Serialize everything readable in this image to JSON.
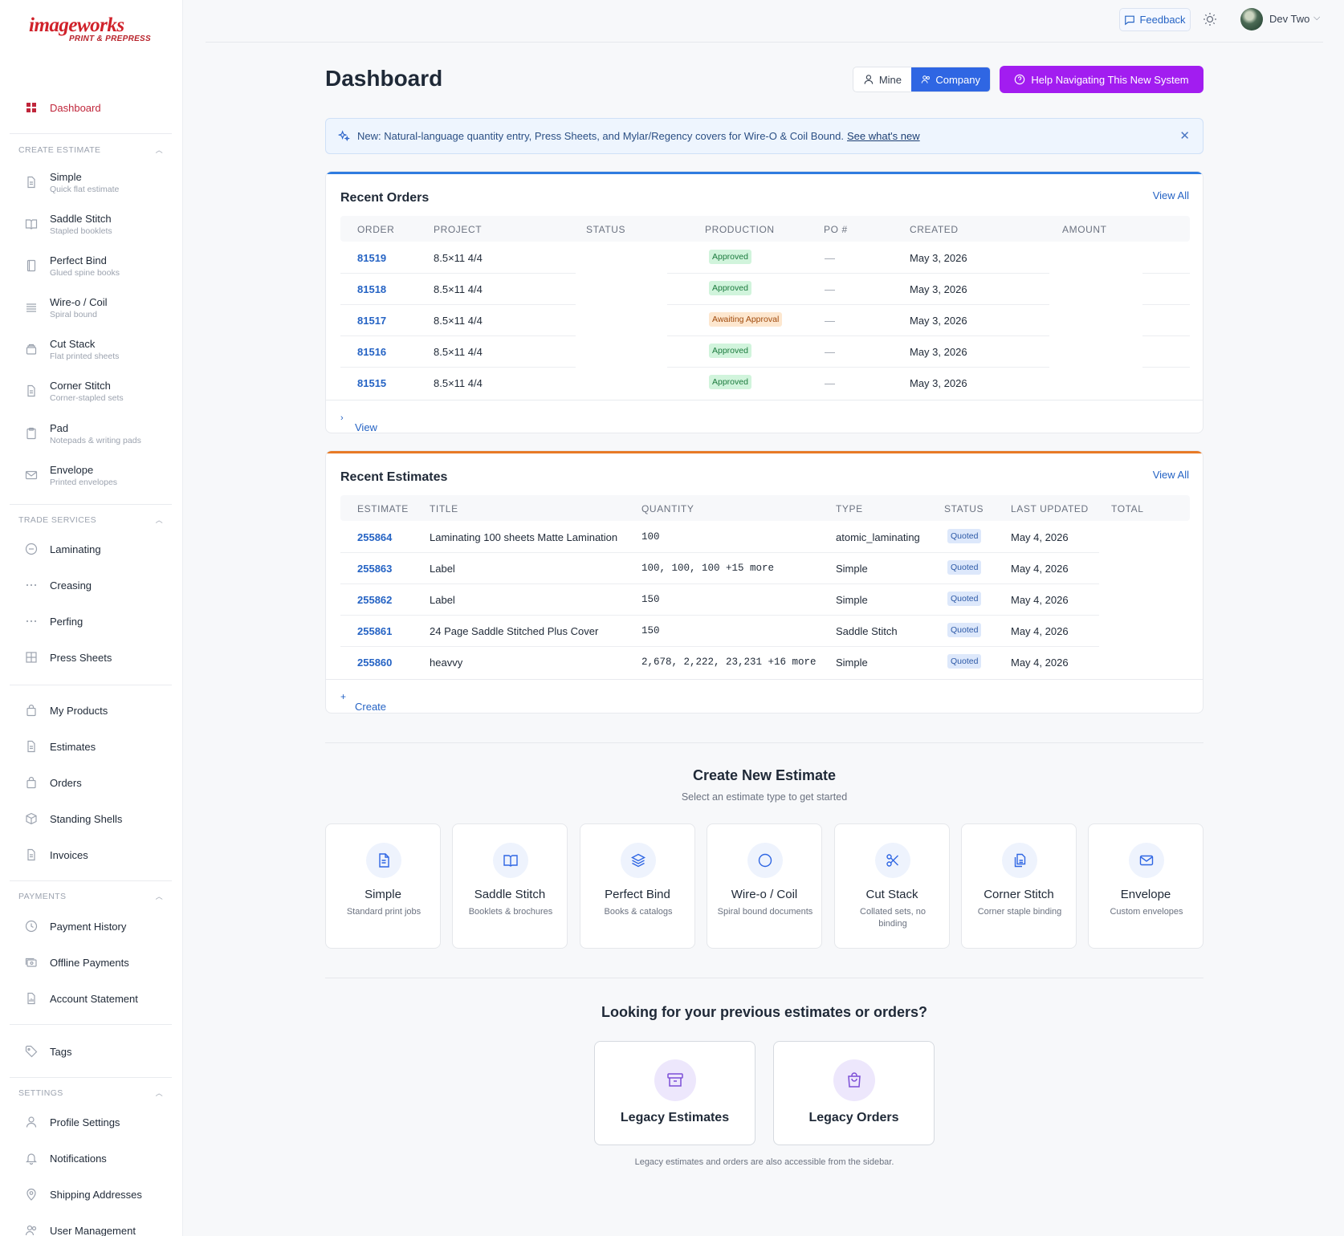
{
  "brand": {
    "line1": "imageworks",
    "line2": "PRINT & PREPRESS"
  },
  "sidebar": {
    "dashboard": "Dashboard",
    "sections": {
      "create_estimate": "CREATE ESTIMATE",
      "trade_services": "TRADE SERVICES",
      "payments": "PAYMENTS",
      "settings": "SETTINGS"
    },
    "create_items": [
      {
        "label": "Simple",
        "sub": "Quick flat estimate"
      },
      {
        "label": "Saddle Stitch",
        "sub": "Stapled booklets"
      },
      {
        "label": "Perfect Bind",
        "sub": "Glued spine books"
      },
      {
        "label": "Wire-o / Coil",
        "sub": "Spiral bound"
      },
      {
        "label": "Cut Stack",
        "sub": "Flat printed sheets"
      },
      {
        "label": "Corner Stitch",
        "sub": "Corner-stapled sets"
      },
      {
        "label": "Pad",
        "sub": "Notepads & writing pads"
      },
      {
        "label": "Envelope",
        "sub": "Printed envelopes"
      }
    ],
    "trade_items": [
      "Laminating",
      "Creasing",
      "Perfing",
      "Press Sheets"
    ],
    "main_items": [
      "My Products",
      "Estimates",
      "Orders",
      "Standing Shells",
      "Invoices"
    ],
    "payment_items": [
      "Payment History",
      "Offline Payments",
      "Account Statement"
    ],
    "tags": "Tags",
    "settings_items": [
      "Profile Settings",
      "Notifications",
      "Shipping Addresses",
      "User Management"
    ]
  },
  "topbar": {
    "feedback": "Feedback",
    "user": "Dev Two"
  },
  "header": {
    "title": "Dashboard",
    "mine": "Mine",
    "company": "Company",
    "help": "Help Navigating This New System"
  },
  "banner": {
    "text": "New: Natural-language quantity entry, Press Sheets, and Mylar/Regency covers for Wire-O & Coil Bound.",
    "link": "See what's new"
  },
  "orders": {
    "title": "Recent Orders",
    "view_all": "View All",
    "columns": [
      "ORDER",
      "PROJECT",
      "STATUS",
      "PRODUCTION",
      "PO #",
      "CREATED",
      "AMOUNT"
    ],
    "rows": [
      {
        "order": "81519",
        "project": "8.5×11 4/4",
        "production": "Approved",
        "po": "—",
        "created": "May 3, 2026"
      },
      {
        "order": "81518",
        "project": "8.5×11 4/4",
        "production": "Approved",
        "po": "—",
        "created": "May 3, 2026"
      },
      {
        "order": "81517",
        "project": "8.5×11 4/4",
        "production": "Awaiting Approval",
        "po": "—",
        "created": "May 3, 2026"
      },
      {
        "order": "81516",
        "project": "8.5×11 4/4",
        "production": "Approved",
        "po": "—",
        "created": "May 3, 2026"
      },
      {
        "order": "81515",
        "project": "8.5×11 4/4",
        "production": "Approved",
        "po": "—",
        "created": "May 3, 2026"
      }
    ],
    "footer": "View all orders"
  },
  "estimates": {
    "title": "Recent Estimates",
    "view_all": "View All",
    "columns": [
      "ESTIMATE",
      "TITLE",
      "QUANTITY",
      "TYPE",
      "STATUS",
      "LAST UPDATED",
      "TOTAL"
    ],
    "rows": [
      {
        "id": "255864",
        "title": "Laminating 100 sheets Matte Lamination",
        "qty": "100",
        "type": "atomic_laminating",
        "status": "Quoted",
        "updated": "May 4, 2026"
      },
      {
        "id": "255863",
        "title": "Label",
        "qty": "100, 100, 100 +15 more",
        "type": "Simple",
        "status": "Quoted",
        "updated": "May 4, 2026"
      },
      {
        "id": "255862",
        "title": "Label",
        "qty": "150",
        "type": "Simple",
        "status": "Quoted",
        "updated": "May 4, 2026"
      },
      {
        "id": "255861",
        "title": "24 Page Saddle Stitched Plus Cover",
        "qty": "150",
        "type": "Saddle Stitch",
        "status": "Quoted",
        "updated": "May 4, 2026"
      },
      {
        "id": "255860",
        "title": "heavvy",
        "qty": "2,678, 2,222, 23,231 +16 more",
        "type": "Simple",
        "status": "Quoted",
        "updated": "May 4, 2026"
      }
    ],
    "footer": "Create new estimate"
  },
  "create_new": {
    "title": "Create New Estimate",
    "subtitle": "Select an estimate type to get started",
    "tiles": [
      {
        "name": "Simple",
        "desc": "Standard print jobs"
      },
      {
        "name": "Saddle Stitch",
        "desc": "Booklets & brochures"
      },
      {
        "name": "Perfect Bind",
        "desc": "Books & catalogs"
      },
      {
        "name": "Wire-o / Coil",
        "desc": "Spiral bound documents"
      },
      {
        "name": "Cut Stack",
        "desc": "Collated sets, no binding"
      },
      {
        "name": "Corner Stitch",
        "desc": "Corner staple binding"
      },
      {
        "name": "Envelope",
        "desc": "Custom envelopes"
      }
    ]
  },
  "legacy": {
    "title": "Looking for your previous estimates or orders?",
    "estimates": "Legacy Estimates",
    "orders": "Legacy Orders",
    "note": "Legacy estimates and orders are also accessible from the sidebar."
  },
  "colors": {
    "accent_blue": "#2f66e3",
    "help_purple": "#a21df0",
    "orders_line": "#2f7ce0",
    "estimates_line": "#e77a26",
    "brand_red": "#d0212a"
  }
}
